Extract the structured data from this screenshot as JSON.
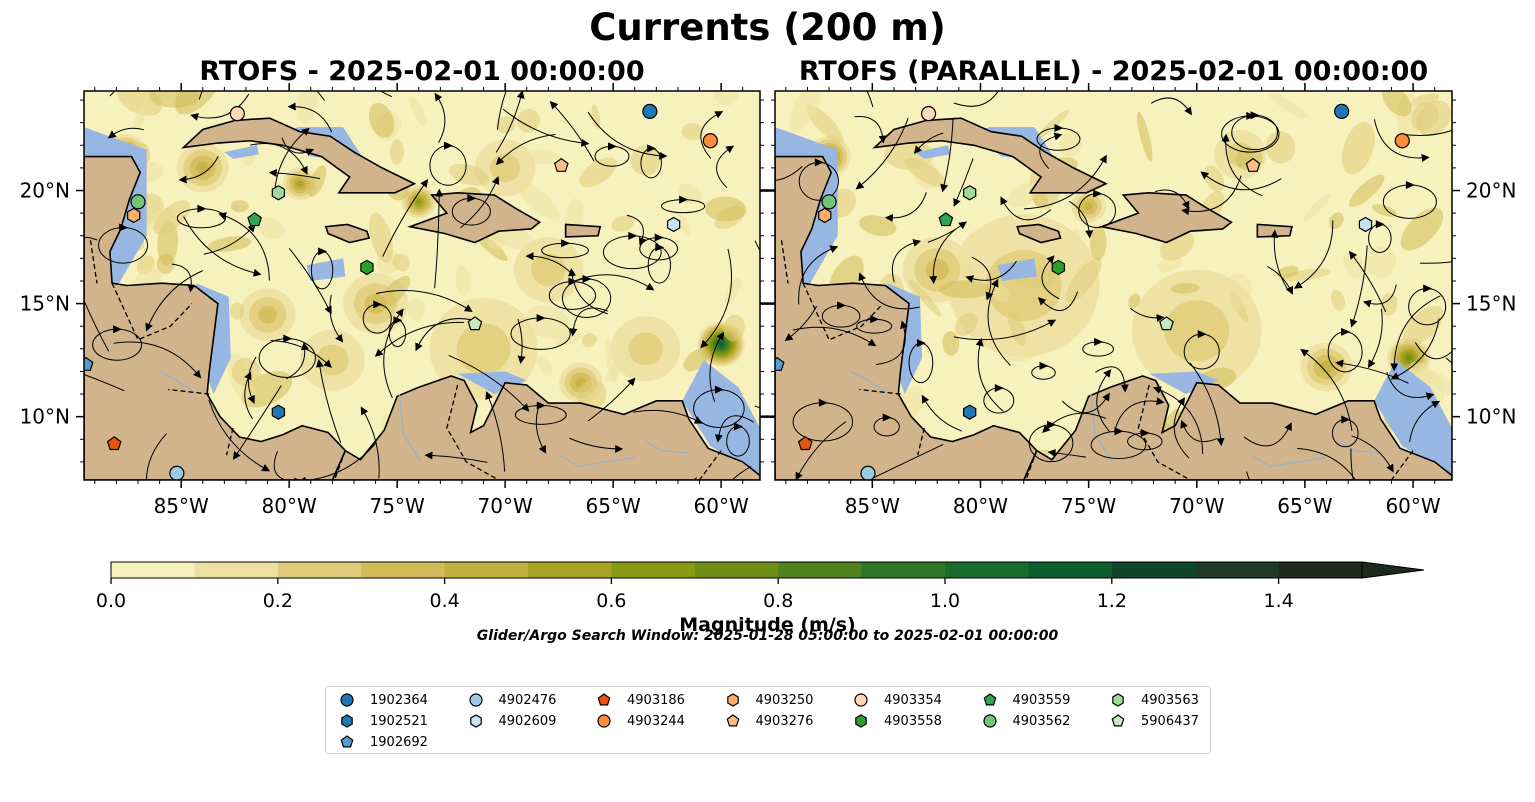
{
  "suptitle": "Currents (200 m)",
  "panels": [
    {
      "title": "RTOFS - 2025-02-01 00:00:00"
    },
    {
      "title": "RTOFS (PARALLEL) - 2025-02-01 00:00:00"
    }
  ],
  "map": {
    "lon_range": [
      -89.5,
      -58.2
    ],
    "lat_range": [
      7.2,
      24.4
    ],
    "lon_ticks": [
      "85°W",
      "80°W",
      "75°W",
      "70°W",
      "65°W",
      "60°W"
    ],
    "lat_ticks": [
      "20°N",
      "15°N",
      "10°N"
    ],
    "land_color": "#d2b48c",
    "shelf_color": "#97b6e1"
  },
  "colorbar": {
    "label": "Magnitude (m/s)",
    "ticks": [
      "0.0",
      "0.2",
      "0.4",
      "0.6",
      "0.8",
      "1.0",
      "1.2",
      "1.4"
    ],
    "min": 0.0,
    "max": 1.5,
    "step": 0.1,
    "extend": "max",
    "colors": [
      "#f7f1bd",
      "#ece1a0",
      "#e0cc7a",
      "#d2bc58",
      "#c2b03f",
      "#a6a325",
      "#8a9a12",
      "#6f8e17",
      "#4f811f",
      "#2f7527",
      "#1a6c2c",
      "#0e5e2d",
      "#11452a",
      "#1e3a25",
      "#1b2a1a"
    ]
  },
  "search_window": "Glider/Argo Search Window: 2025-01-28 05:00:00 to 2025-02-01 00:00:00",
  "legend": [
    {
      "id": "1902364",
      "color": "#1f77b4",
      "marker": "circle"
    },
    {
      "id": "1902521",
      "color": "#1f77b4",
      "marker": "hexagon"
    },
    {
      "id": "1902692",
      "color": "#5a9ed1",
      "marker": "pentagon"
    },
    {
      "id": "4902476",
      "color": "#9ecae1",
      "marker": "circle"
    },
    {
      "id": "4902609",
      "color": "#c6e2f5",
      "marker": "hexagon"
    },
    {
      "id": "4903186",
      "color": "#e6550d",
      "marker": "pentagon"
    },
    {
      "id": "4903244",
      "color": "#fd8d3c",
      "marker": "circle"
    },
    {
      "id": "4903250",
      "color": "#fdae6b",
      "marker": "hexagon"
    },
    {
      "id": "4903276",
      "color": "#fdbe85",
      "marker": "pentagon"
    },
    {
      "id": "4903354",
      "color": "#fdd9b8",
      "marker": "circle"
    },
    {
      "id": "4903558",
      "color": "#2ca02c",
      "marker": "hexagon"
    },
    {
      "id": "4903559",
      "color": "#31a354",
      "marker": "pentagon"
    },
    {
      "id": "4903562",
      "color": "#74c476",
      "marker": "circle"
    },
    {
      "id": "4903563",
      "color": "#a1d99b",
      "marker": "hexagon"
    },
    {
      "id": "5906437",
      "color": "#c7e9c0",
      "marker": "pentagon"
    }
  ],
  "floats_on_map": [
    {
      "id": "1902364",
      "lon": -63.3,
      "lat": 23.5
    },
    {
      "id": "1902521",
      "lon": -80.5,
      "lat": 10.2
    },
    {
      "id": "1902692",
      "lon": -89.4,
      "lat": 12.3
    },
    {
      "id": "4902476",
      "lon": -85.2,
      "lat": 7.5
    },
    {
      "id": "4902609",
      "lon": -62.2,
      "lat": 18.5
    },
    {
      "id": "4903186",
      "lon": -88.1,
      "lat": 8.8
    },
    {
      "id": "4903244",
      "lon": -60.5,
      "lat": 22.2
    },
    {
      "id": "4903250",
      "lon": -87.2,
      "lat": 18.9
    },
    {
      "id": "4903276",
      "lon": -67.4,
      "lat": 21.1
    },
    {
      "id": "4903354",
      "lon": -82.4,
      "lat": 23.4
    },
    {
      "id": "4903558",
      "lon": -76.4,
      "lat": 16.6
    },
    {
      "id": "4903559",
      "lon": -81.6,
      "lat": 18.7
    },
    {
      "id": "4903562",
      "lon": -87.0,
      "lat": 19.5
    },
    {
      "id": "4903563",
      "lon": -80.5,
      "lat": 19.9
    },
    {
      "id": "5906437",
      "lon": -71.4,
      "lat": 14.1
    }
  ]
}
